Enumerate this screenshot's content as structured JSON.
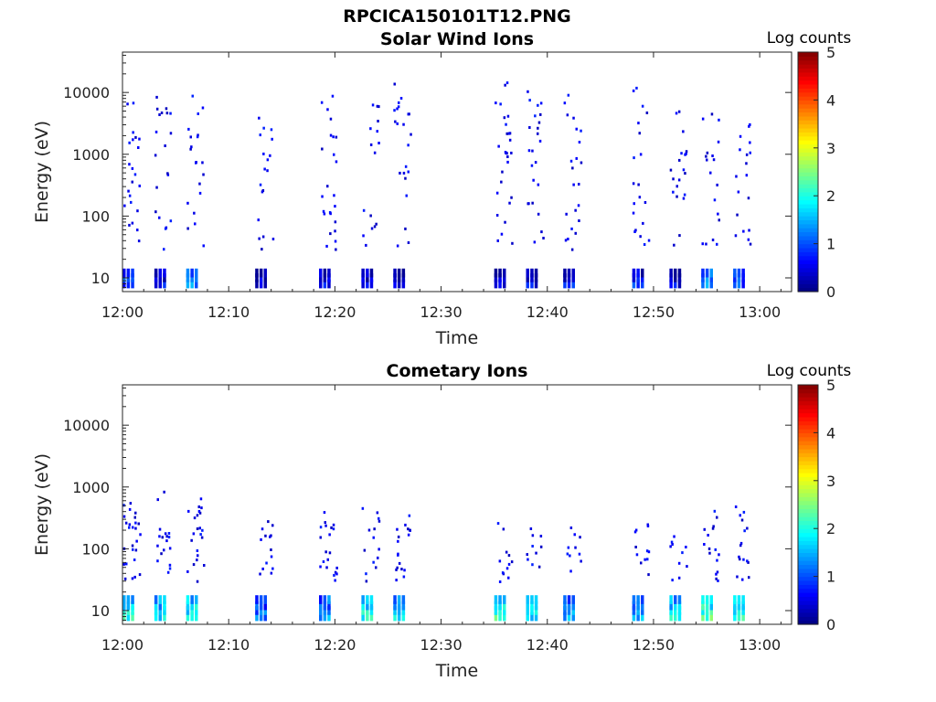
{
  "figure_title": "RPCICA150101T12.PNG",
  "chart_data": [
    {
      "type": "heatmap",
      "title": "Solar Wind Ions",
      "xlabel": "Time",
      "ylabel": "Energy (eV)",
      "y_scale": "log",
      "ylim": [
        6,
        45000
      ],
      "xlim": [
        "12:00",
        "13:03"
      ],
      "x_ticks": [
        "12:00",
        "12:10",
        "12:20",
        "12:30",
        "12:40",
        "12:50",
        "13:00"
      ],
      "y_ticks": [
        "10",
        "100",
        "1000",
        "10000"
      ],
      "colorbar": {
        "label": "Log counts",
        "range": [
          0,
          5
        ],
        "ticks": [
          "0",
          "1",
          "2",
          "3",
          "4",
          "5"
        ],
        "colormap": "jet"
      },
      "bursts": [
        {
          "start": "12:00.0",
          "low_bins": 2,
          "low_level": 1.0,
          "scatter_points": 22,
          "max_energy_ev": 12000
        },
        {
          "start": "12:03.0",
          "low_bins": 2,
          "low_level": 0.6,
          "scatter_points": 20,
          "max_energy_ev": 9000
        },
        {
          "start": "12:06.0",
          "low_bins": 2,
          "low_level": 1.2,
          "scatter_points": 20,
          "max_energy_ev": 10000
        },
        {
          "start": "12:12.5",
          "low_bins": 2,
          "low_level": 0.5,
          "scatter_points": 18,
          "max_energy_ev": 6000
        },
        {
          "start": "12:18.5",
          "low_bins": 2,
          "low_level": 0.5,
          "scatter_points": 24,
          "max_energy_ev": 12000
        },
        {
          "start": "12:22.5",
          "low_bins": 2,
          "low_level": 0.5,
          "scatter_points": 16,
          "max_energy_ev": 8000
        },
        {
          "start": "12:25.5",
          "low_bins": 2,
          "low_level": 0.6,
          "scatter_points": 22,
          "max_energy_ev": 15000
        },
        {
          "start": "12:35.0",
          "low_bins": 2,
          "low_level": 0.5,
          "scatter_points": 28,
          "max_energy_ev": 17000
        },
        {
          "start": "12:38.0",
          "low_bins": 2,
          "low_level": 0.5,
          "scatter_points": 24,
          "max_energy_ev": 12000
        },
        {
          "start": "12:41.5",
          "low_bins": 2,
          "low_level": 0.6,
          "scatter_points": 22,
          "max_energy_ev": 12000
        },
        {
          "start": "12:48.0",
          "low_bins": 2,
          "low_level": 0.8,
          "scatter_points": 20,
          "max_energy_ev": 15000
        },
        {
          "start": "12:51.5",
          "low_bins": 2,
          "low_level": 0.5,
          "scatter_points": 20,
          "max_energy_ev": 6000
        },
        {
          "start": "12:54.5",
          "low_bins": 2,
          "low_level": 1.5,
          "scatter_points": 18,
          "max_energy_ev": 7000
        },
        {
          "start": "12:57.5",
          "low_bins": 2,
          "low_level": 1.0,
          "scatter_points": 18,
          "max_energy_ev": 7000
        }
      ]
    },
    {
      "type": "heatmap",
      "title": "Cometary Ions",
      "xlabel": "Time",
      "ylabel": "Energy (eV)",
      "y_scale": "log",
      "ylim": [
        6,
        45000
      ],
      "xlim": [
        "12:00",
        "13:03"
      ],
      "x_ticks": [
        "12:00",
        "12:10",
        "12:20",
        "12:30",
        "12:40",
        "12:50",
        "13:00"
      ],
      "y_ticks": [
        "10",
        "100",
        "1000",
        "10000"
      ],
      "colorbar": {
        "label": "Log counts",
        "range": [
          0,
          5
        ],
        "ticks": [
          "0",
          "1",
          "2",
          "3",
          "4",
          "5"
        ],
        "colormap": "jet"
      },
      "bursts": [
        {
          "start": "12:00.0",
          "low_bins": 3,
          "low_level": 2.0,
          "scatter_points": 26,
          "max_energy_ev": 600
        },
        {
          "start": "12:03.0",
          "low_bins": 3,
          "low_level": 1.8,
          "scatter_points": 18,
          "max_energy_ev": 900
        },
        {
          "start": "12:06.0",
          "low_bins": 3,
          "low_level": 2.0,
          "scatter_points": 22,
          "max_energy_ev": 700
        },
        {
          "start": "12:12.5",
          "low_bins": 3,
          "low_level": 1.2,
          "scatter_points": 14,
          "max_energy_ev": 350
        },
        {
          "start": "12:18.5",
          "low_bins": 3,
          "low_level": 1.5,
          "scatter_points": 20,
          "max_energy_ev": 500
        },
        {
          "start": "12:22.5",
          "low_bins": 3,
          "low_level": 2.0,
          "scatter_points": 14,
          "max_energy_ev": 500
        },
        {
          "start": "12:25.5",
          "low_bins": 3,
          "low_level": 1.8,
          "scatter_points": 18,
          "max_energy_ev": 400
        },
        {
          "start": "12:35.0",
          "low_bins": 3,
          "low_level": 2.2,
          "scatter_points": 12,
          "max_energy_ev": 300
        },
        {
          "start": "12:38.0",
          "low_bins": 3,
          "low_level": 1.8,
          "scatter_points": 10,
          "max_energy_ev": 250
        },
        {
          "start": "12:41.5",
          "low_bins": 3,
          "low_level": 1.5,
          "scatter_points": 10,
          "max_energy_ev": 250
        },
        {
          "start": "12:48.0",
          "low_bins": 3,
          "low_level": 1.5,
          "scatter_points": 12,
          "max_energy_ev": 300
        },
        {
          "start": "12:51.5",
          "low_bins": 3,
          "low_level": 1.8,
          "scatter_points": 10,
          "max_energy_ev": 350
        },
        {
          "start": "12:54.5",
          "low_bins": 3,
          "low_level": 2.2,
          "scatter_points": 16,
          "max_energy_ev": 450
        },
        {
          "start": "12:57.5",
          "low_bins": 3,
          "low_level": 2.0,
          "scatter_points": 16,
          "max_energy_ev": 600
        }
      ]
    }
  ]
}
